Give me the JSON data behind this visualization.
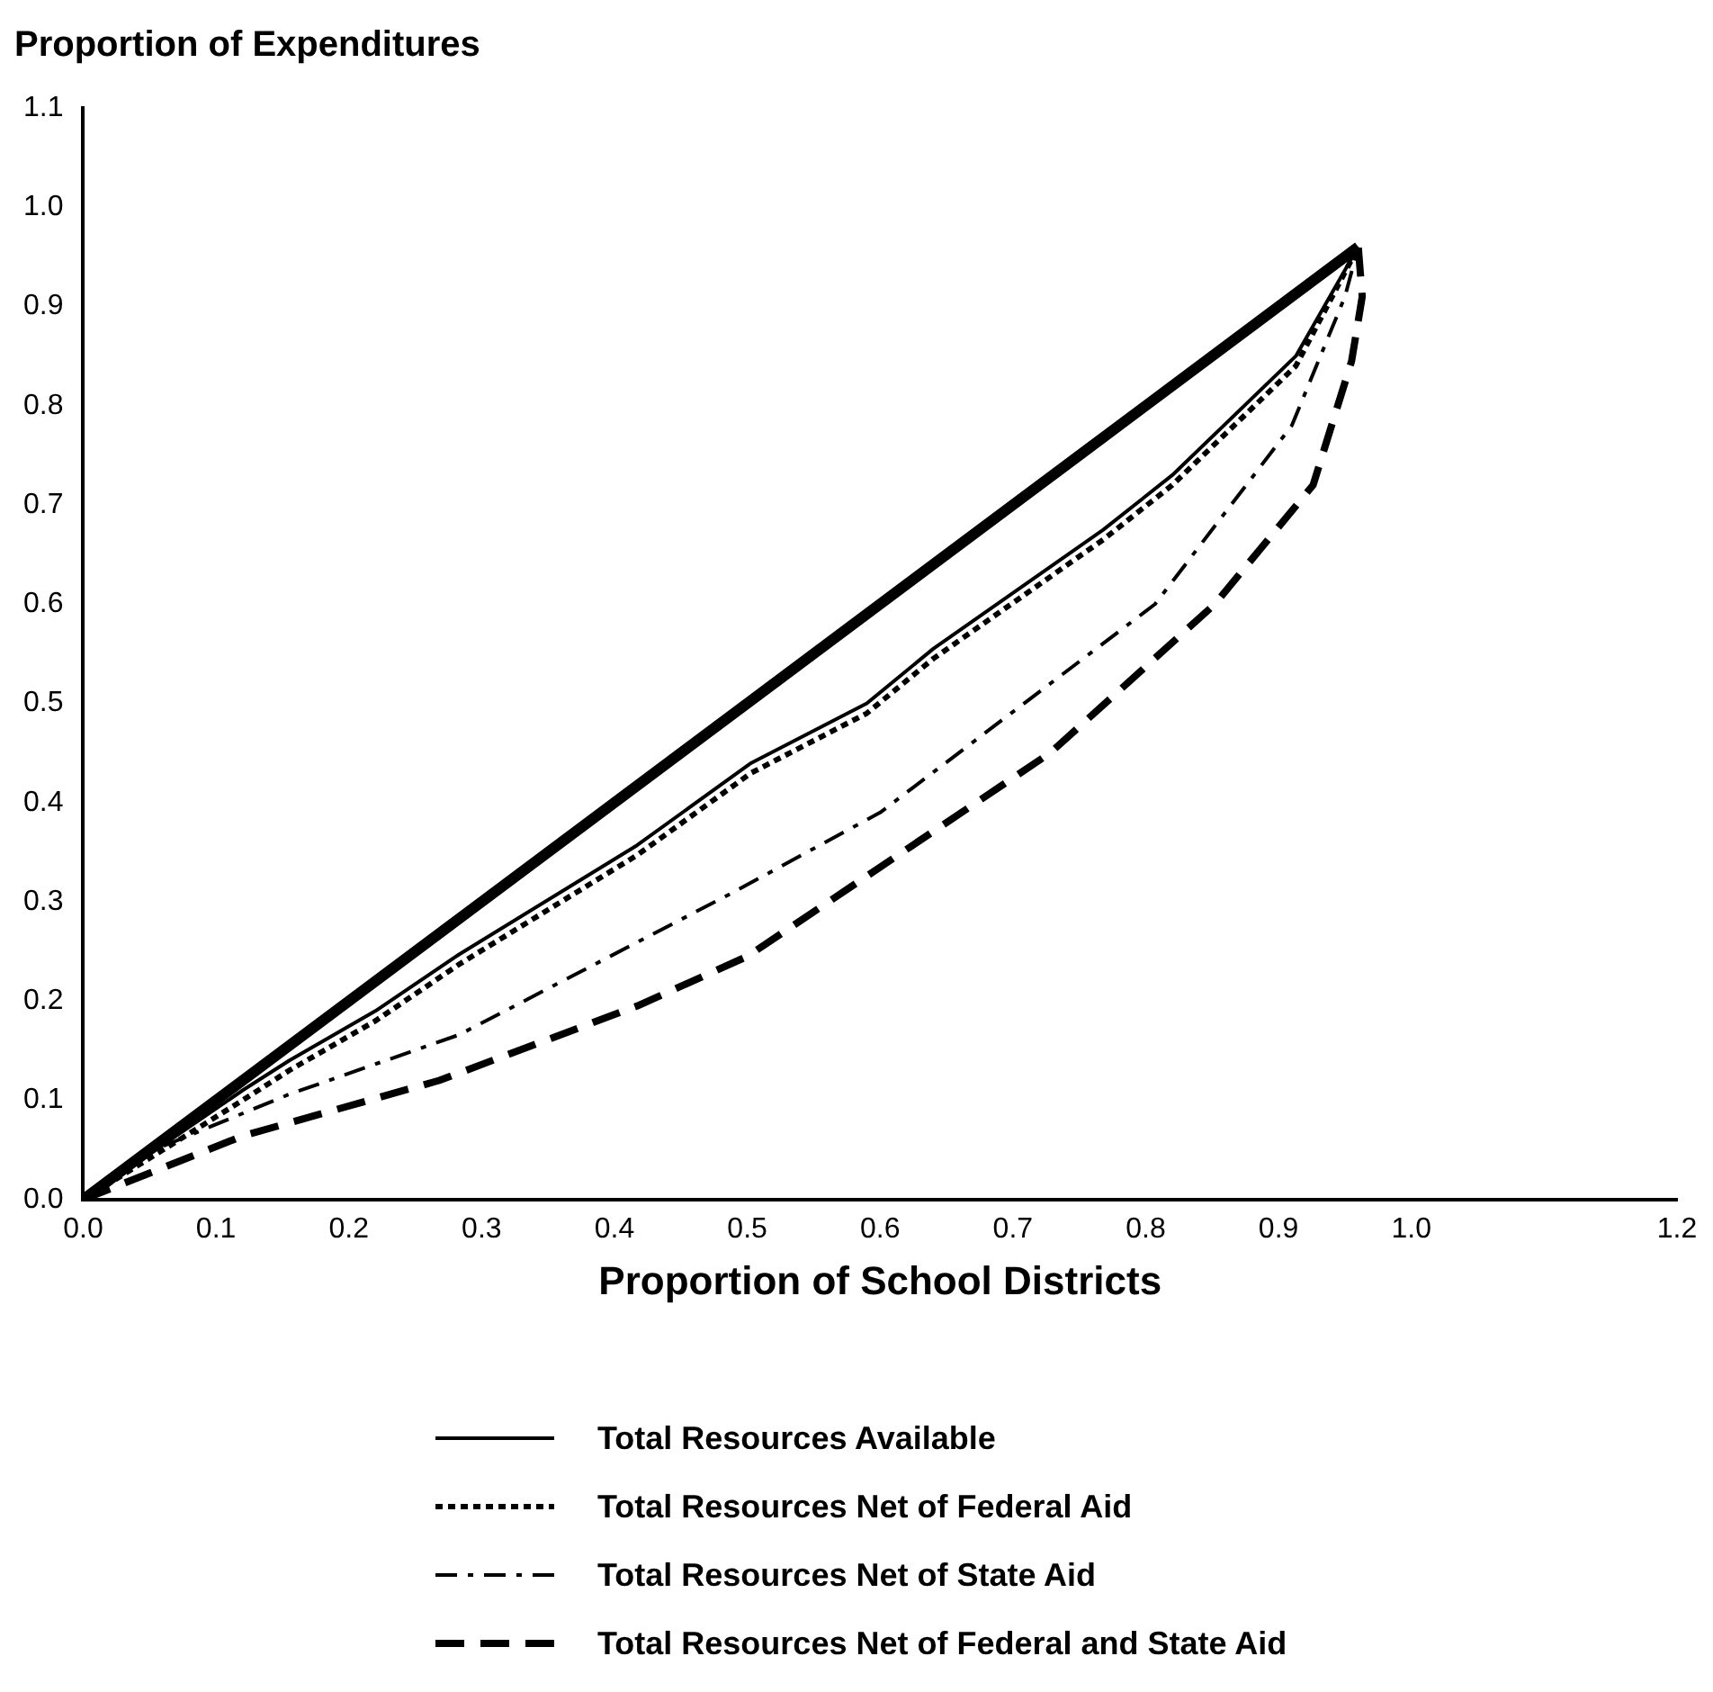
{
  "chart_data": {
    "type": "line",
    "ylabel": "Proportion of Expenditures",
    "xlabel": "Proportion of School Districts",
    "xlim": [
      0,
      1.2
    ],
    "xticks": [
      {
        "value": 0,
        "label": "0.0"
      },
      0.1,
      0.2,
      0.3,
      0.4,
      0.5,
      0.6,
      0.7,
      0.8,
      0.9,
      {
        "value": 1,
        "label": "1.0"
      },
      1.2
    ],
    "ylim": [
      0,
      1.1
    ],
    "yticks": [
      {
        "value": 0,
        "label": "0.0"
      },
      0.1,
      0.2,
      0.3,
      0.4,
      0.5,
      0.6,
      0.7,
      0.8,
      0.9,
      {
        "value": 1,
        "label": "1.0"
      },
      1.1
    ],
    "grid": false,
    "legend": "bottom",
    "marker": "none",
    "series": [
      {
        "color": "#000000",
        "line_style": "solid",
        "x": [
          0,
          0.96
        ],
        "values": [
          0,
          0.96
        ]
      },
      {
        "name": "Total Resources Available",
        "color": "#000000",
        "line_style": "solid",
        "x": [
          0,
          0.12,
          0.155,
          0.22,
          0.283,
          0.417,
          0.503,
          0.59,
          0.64,
          0.768,
          0.82,
          0.913,
          0.96
        ],
        "values": [
          0,
          0.11,
          0.14,
          0.19,
          0.247,
          0.357,
          0.44,
          0.5,
          0.555,
          0.675,
          0.73,
          0.85,
          0.96
        ]
      },
      {
        "name": "Total Resources Net of Federal Aid",
        "color": "#000000",
        "line_style": "dotted",
        "x": [
          0,
          0.12,
          0.155,
          0.22,
          0.283,
          0.417,
          0.503,
          0.59,
          0.64,
          0.768,
          0.82,
          0.913,
          0.96
        ],
        "values": [
          0,
          0.1,
          0.13,
          0.18,
          0.237,
          0.347,
          0.43,
          0.49,
          0.545,
          0.665,
          0.72,
          0.84,
          0.96
        ]
      },
      {
        "name": "Total Resources Net of State Aid",
        "color": "#000000",
        "line_style": "dashdot",
        "x": [
          0,
          0.046,
          0.155,
          0.283,
          0.49,
          0.6,
          0.807,
          0.91,
          0.95,
          0.96
        ],
        "values": [
          0,
          0.046,
          0.106,
          0.166,
          0.31,
          0.39,
          0.6,
          0.78,
          0.91,
          0.96
        ]
      },
      {
        "name": "Total Resources Net of Federal and State Aid",
        "color": "#000000",
        "line_style": "dashed",
        "x": [
          0,
          0.12,
          0.268,
          0.417,
          0.5,
          0.728,
          0.852,
          0.926,
          0.955,
          0.963,
          0.96
        ],
        "values": [
          0,
          0.064,
          0.12,
          0.195,
          0.245,
          0.45,
          0.6,
          0.72,
          0.845,
          0.91,
          0.96
        ]
      }
    ]
  }
}
